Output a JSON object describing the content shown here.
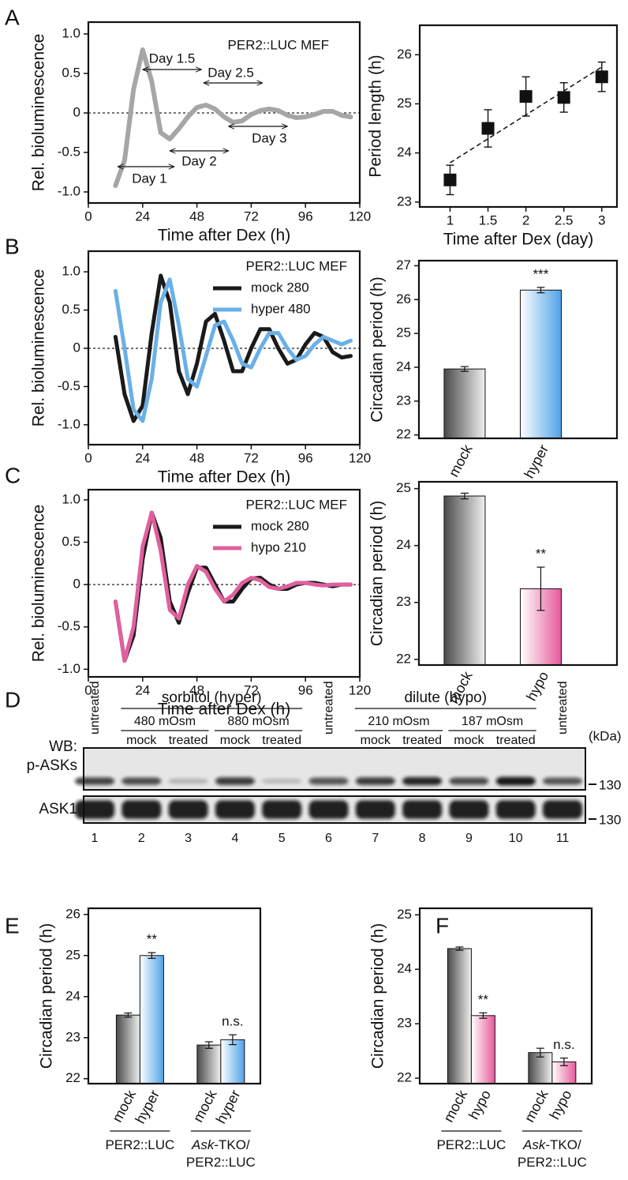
{
  "panels": [
    "A",
    "B",
    "C",
    "D",
    "E",
    "F"
  ],
  "chart_data": [
    {
      "type": "line",
      "xlabel": "Time after Dex (h)",
      "ylabel": "Rel. bioluminescence",
      "x": [
        12,
        16,
        20,
        24,
        28,
        32,
        36,
        40,
        44,
        48,
        52,
        56,
        60,
        64,
        68,
        72,
        76,
        80,
        84,
        88,
        92,
        96,
        100,
        104,
        108,
        112,
        116
      ],
      "series": [
        {
          "color": "#a6a6a6",
          "values": [
            -0.92,
            -0.6,
            0.3,
            0.8,
            0.4,
            -0.25,
            -0.33,
            -0.2,
            -0.05,
            0.07,
            0.1,
            0.05,
            -0.05,
            -0.12,
            -0.1,
            -0.02,
            0.03,
            0.05,
            0.03,
            -0.03,
            -0.06,
            -0.05,
            -0.02,
            0.02,
            0.02,
            -0.03,
            -0.05
          ]
        }
      ],
      "annotations": [
        "PER2::LUC MEF",
        "Day 1.5",
        "Day 2.5",
        "Day 3",
        "Day 2",
        "Day 1"
      ],
      "xlim": [
        0,
        120
      ],
      "ylim": [
        -1.14,
        1.15
      ],
      "xticks": [
        0,
        24,
        48,
        72,
        96,
        120
      ],
      "yticks": [
        {
          "value": -1,
          "label": "-1.0"
        },
        -0.5,
        0,
        0.5,
        {
          "value": 1,
          "label": "1.0"
        }
      ],
      "zero_line": true
    },
    {
      "type": "scatter",
      "xlabel": "Time after Dex (day)",
      "ylabel": "Period length (h)",
      "x": [
        1,
        1.5,
        2,
        2.5,
        3
      ],
      "values": [
        23.45,
        24.5,
        25.15,
        25.13,
        25.55
      ],
      "errors": [
        0.3,
        0.38,
        0.4,
        0.3,
        0.3
      ],
      "color": "#111111",
      "trend": {
        "x": [
          1,
          3
        ],
        "y": [
          23.8,
          25.75
        ]
      },
      "xlim": [
        0.6,
        3.2
      ],
      "ylim": [
        22.9,
        26.6
      ],
      "xticks": [
        1,
        1.5,
        2,
        2.5,
        3
      ],
      "yticks": [
        23,
        24,
        25,
        26
      ]
    },
    {
      "type": "line",
      "xlabel": "Time after Dex (h)",
      "ylabel": "Rel. bioluminescence",
      "legend_title": "PER2::LUC MEF",
      "x": [
        12,
        16,
        20,
        24,
        28,
        32,
        36,
        40,
        44,
        48,
        52,
        56,
        60,
        64,
        68,
        72,
        76,
        80,
        84,
        88,
        92,
        96,
        100,
        104,
        108,
        112,
        116
      ],
      "series": [
        {
          "name": "mock 280",
          "color": "#1a1a1a",
          "values": [
            0.15,
            -0.6,
            -0.95,
            -0.75,
            0.2,
            0.95,
            0.6,
            -0.3,
            -0.6,
            -0.2,
            0.35,
            0.45,
            0.1,
            -0.3,
            -0.3,
            0.0,
            0.25,
            0.25,
            0.0,
            -0.2,
            -0.15,
            0.05,
            0.2,
            0.15,
            -0.05,
            -0.12,
            -0.1
          ]
        },
        {
          "name": "hyper 480",
          "color": "#6ab0e8",
          "values": [
            0.75,
            0.0,
            -0.8,
            -0.95,
            -0.4,
            0.6,
            0.9,
            0.3,
            -0.4,
            -0.5,
            -0.1,
            0.3,
            0.35,
            0.1,
            -0.2,
            -0.25,
            0.0,
            0.2,
            0.2,
            0.0,
            -0.15,
            -0.1,
            0.05,
            0.15,
            0.1,
            0.05,
            0.1
          ]
        }
      ],
      "xlim": [
        0,
        120
      ],
      "ylim": [
        -1.26,
        1.27
      ],
      "xticks": [
        0,
        24,
        48,
        72,
        96,
        120
      ],
      "yticks": [
        {
          "value": -1,
          "label": "-1.0"
        },
        -0.5,
        0,
        0.5,
        {
          "value": 1,
          "label": "1.0"
        }
      ],
      "zero_line": true
    },
    {
      "type": "bar",
      "ylabel": "Circadian period (h)",
      "categories": [
        "mock",
        "hyper"
      ],
      "values": [
        23.95,
        26.28
      ],
      "errors": [
        0.07,
        0.08
      ],
      "colors": [
        "#4a4a4a",
        "#4fa3e8"
      ],
      "significance": [
        null,
        "***"
      ],
      "ylim": [
        21.9,
        27.15
      ],
      "yticks": [
        22,
        23,
        24,
        25,
        26,
        27
      ]
    },
    {
      "type": "line",
      "xlabel": "Time after Dex (h)",
      "ylabel": "Rel. bioluminescence",
      "legend_title": "PER2::LUC MEF",
      "x": [
        12,
        16,
        20,
        24,
        28,
        32,
        36,
        40,
        44,
        48,
        52,
        56,
        60,
        64,
        68,
        72,
        76,
        80,
        84,
        88,
        92,
        96,
        100,
        104,
        108,
        112,
        116
      ],
      "series": [
        {
          "name": "mock 280",
          "color": "#1a1a1a",
          "values": [
            -0.2,
            -0.9,
            -0.6,
            0.3,
            0.85,
            0.55,
            -0.2,
            -0.45,
            -0.1,
            0.2,
            0.2,
            0.0,
            -0.2,
            -0.2,
            -0.05,
            0.07,
            0.08,
            0.0,
            -0.05,
            -0.05,
            0.0,
            0.02,
            0.02,
            0.0,
            -0.02,
            0.0,
            0.0
          ]
        },
        {
          "name": "hypo 210",
          "color": "#e0609e",
          "values": [
            -0.2,
            -0.9,
            -0.5,
            0.45,
            0.85,
            0.4,
            -0.3,
            -0.4,
            0.0,
            0.22,
            0.15,
            -0.05,
            -0.2,
            -0.12,
            0.02,
            0.08,
            0.05,
            -0.03,
            -0.05,
            -0.02,
            0.02,
            0.02,
            0.0,
            -0.01,
            0.0,
            0.0,
            0.0
          ]
        }
      ],
      "xlim": [
        0,
        120
      ],
      "ylim": [
        -1.09,
        1.12
      ],
      "xticks": [
        0,
        24,
        48,
        72,
        96,
        120
      ],
      "yticks": [
        {
          "value": -1,
          "label": "-1.0"
        },
        -0.5,
        0,
        0.5,
        {
          "value": 1,
          "label": "1.0"
        }
      ],
      "zero_line": true
    },
    {
      "type": "bar",
      "ylabel": "Circadian period (h)",
      "categories": [
        "mock",
        "hypo"
      ],
      "values": [
        24.87,
        23.24
      ],
      "errors": [
        0.05,
        0.38
      ],
      "colors": [
        "#4a4a4a",
        "#e55a9a"
      ],
      "significance": [
        null,
        "**"
      ],
      "ylim": [
        21.9,
        25.12
      ],
      "yticks": [
        22,
        23,
        24,
        25
      ]
    },
    {
      "type": "bar",
      "ylabel": "Circadian period (h)",
      "categories": [
        "mock",
        "hyper",
        "mock",
        "hyper"
      ],
      "values": [
        23.55,
        25.0,
        22.82,
        22.95
      ],
      "errors": [
        0.05,
        0.07,
        0.08,
        0.12
      ],
      "colors": [
        "#4a4a4a",
        "#4fa3e8",
        "#4a4a4a",
        "#4fa3e8"
      ],
      "significance": [
        null,
        "**",
        null,
        "n.s."
      ],
      "groups": [
        {
          "lines": [
            [
              "PER2::LUC"
            ]
          ]
        },
        {
          "lines": [
            [
              "Ask",
              "-TKO/"
            ],
            [
              "PER2::LUC"
            ]
          ]
        }
      ],
      "ylim": [
        21.88,
        26.15
      ],
      "yticks": [
        22,
        23,
        24,
        25,
        26
      ]
    },
    {
      "type": "bar",
      "ylabel": "Circadian period (h)",
      "categories": [
        "mock",
        "hypo",
        "mock",
        "hypo"
      ],
      "values": [
        24.38,
        23.15,
        22.47,
        22.3
      ],
      "errors": [
        0.03,
        0.05,
        0.08,
        0.07
      ],
      "colors": [
        "#4a4a4a",
        "#e55a9a",
        "#4a4a4a",
        "#e55a9a"
      ],
      "significance": [
        null,
        "**",
        null,
        "n.s."
      ],
      "groups": [
        {
          "lines": [
            [
              "PER2::LUC"
            ]
          ]
        },
        {
          "lines": [
            [
              "Ask",
              "-TKO/"
            ],
            [
              "PER2::LUC"
            ]
          ]
        }
      ],
      "ylim": [
        21.9,
        25.12
      ],
      "yticks": [
        22,
        23,
        24,
        25
      ]
    }
  ],
  "blot": {
    "lanes": [
      {
        "number": 1,
        "label": "untreated"
      },
      {
        "number": 2,
        "label": "mock"
      },
      {
        "number": 3,
        "label": "treated"
      },
      {
        "number": 4,
        "label": "mock"
      },
      {
        "number": 5,
        "label": "treated"
      },
      {
        "number": 6,
        "label": "untreated"
      },
      {
        "number": 7,
        "label": "mock"
      },
      {
        "number": 8,
        "label": "treated"
      },
      {
        "number": 9,
        "label": "mock"
      },
      {
        "number": 10,
        "label": "treated"
      },
      {
        "number": 11,
        "label": "untreated"
      }
    ],
    "treatments": [
      {
        "label": "sorbitol (hyper)",
        "doses": [
          "480 mOsm",
          "880 mOsm"
        ]
      },
      {
        "label": "dilute (hypo)",
        "doses": [
          "210 mOsm",
          "187 mOsm"
        ]
      }
    ],
    "rows": [
      {
        "labels": [
          "WB:",
          "p-ASKs"
        ],
        "marker": "130"
      },
      {
        "labels": [
          "ASK1"
        ],
        "marker": "130"
      }
    ],
    "unit": "(kDa)"
  }
}
